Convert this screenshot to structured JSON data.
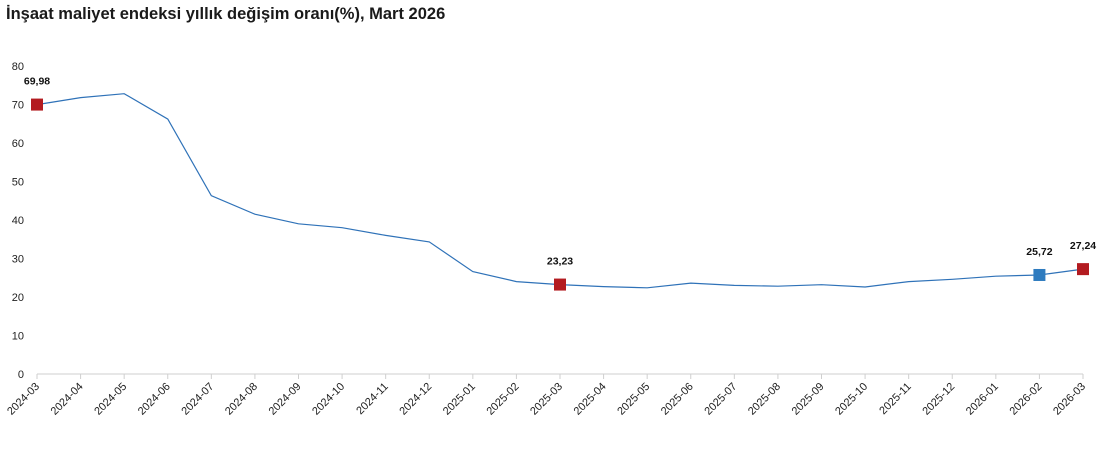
{
  "title": "İnşaat maliyet endeksi yıllık değişim oranı(%), Mart 2026",
  "chart_data": {
    "type": "line",
    "title": "İnşaat maliyet endeksi yıllık değişim oranı(%), Mart 2026",
    "xlabel": "",
    "ylabel": "",
    "ylim": [
      0,
      80
    ],
    "yticks": [
      "0",
      "10",
      "20",
      "30",
      "40",
      "50",
      "60",
      "70",
      "80"
    ],
    "grid": false,
    "categories": [
      "2024-03",
      "2024-04",
      "2024-05",
      "2024-06",
      "2024-07",
      "2024-08",
      "2024-09",
      "2024-10",
      "2024-11",
      "2024-12",
      "2025-01",
      "2025-02",
      "2025-03",
      "2025-04",
      "2025-05",
      "2025-06",
      "2025-07",
      "2025-08",
      "2025-09",
      "2025-10",
      "2025-11",
      "2025-12",
      "2026-01",
      "2026-02",
      "2026-03"
    ],
    "series": [
      {
        "values": [
          69.98,
          71.8,
          72.8,
          66.2,
          46.3,
          41.5,
          39.0,
          38.0,
          36.0,
          34.3,
          26.6,
          24.0,
          23.23,
          22.7,
          22.4,
          23.6,
          23.0,
          22.8,
          23.2,
          22.6,
          24.0,
          24.6,
          25.4,
          25.72,
          27.24
        ],
        "color": "#2f72b8"
      }
    ],
    "markers": [
      {
        "index": 0,
        "label": "69,98",
        "color": "#b31b20"
      },
      {
        "index": 12,
        "label": "23,23",
        "color": "#b31b20"
      },
      {
        "index": 23,
        "label": "25,72",
        "color": "#2e7bbf"
      },
      {
        "index": 24,
        "label": "27,24",
        "color": "#b31b20"
      }
    ]
  }
}
